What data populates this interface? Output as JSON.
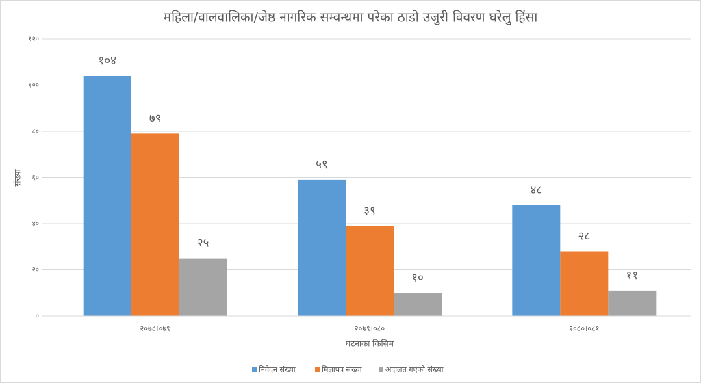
{
  "chart_data": {
    "type": "bar",
    "title": "महिला/वालवालिका/जेष्ठ नागरिक सम्वन्धमा परेका ठाडो उजुरी विवरण घरेलु हिंसा",
    "x_label": "घटनाका किसिम",
    "y_label": "संख्या",
    "categories": [
      "२०७८।०७९",
      "२०७९।०८०",
      "२०८०।०८१"
    ],
    "series": [
      {
        "name": "निवेदन संख्या",
        "color": "#5b9bd5",
        "values": [
          104,
          59,
          48
        ],
        "value_labels": [
          "१०४",
          "५९",
          "४८"
        ]
      },
      {
        "name": "मिलापत्र संख्या",
        "color": "#ed7d31",
        "values": [
          79,
          39,
          28
        ],
        "value_labels": [
          "७९",
          "३९",
          "२८"
        ]
      },
      {
        "name": "अदालत गएको संख्या",
        "color": "#a5a5a5",
        "values": [
          25,
          10,
          11
        ],
        "value_labels": [
          "२५",
          "१०",
          "११"
        ]
      }
    ],
    "ylim": [
      0,
      120
    ],
    "yticks": [
      {
        "value": 0,
        "label": "०"
      },
      {
        "value": 20,
        "label": "२०"
      },
      {
        "value": 40,
        "label": "४०"
      },
      {
        "value": 60,
        "label": "६०"
      },
      {
        "value": 80,
        "label": "८०"
      },
      {
        "value": 100,
        "label": "१००"
      },
      {
        "value": 120,
        "label": "१२०"
      }
    ],
    "grid": true,
    "legend": "bottom"
  }
}
